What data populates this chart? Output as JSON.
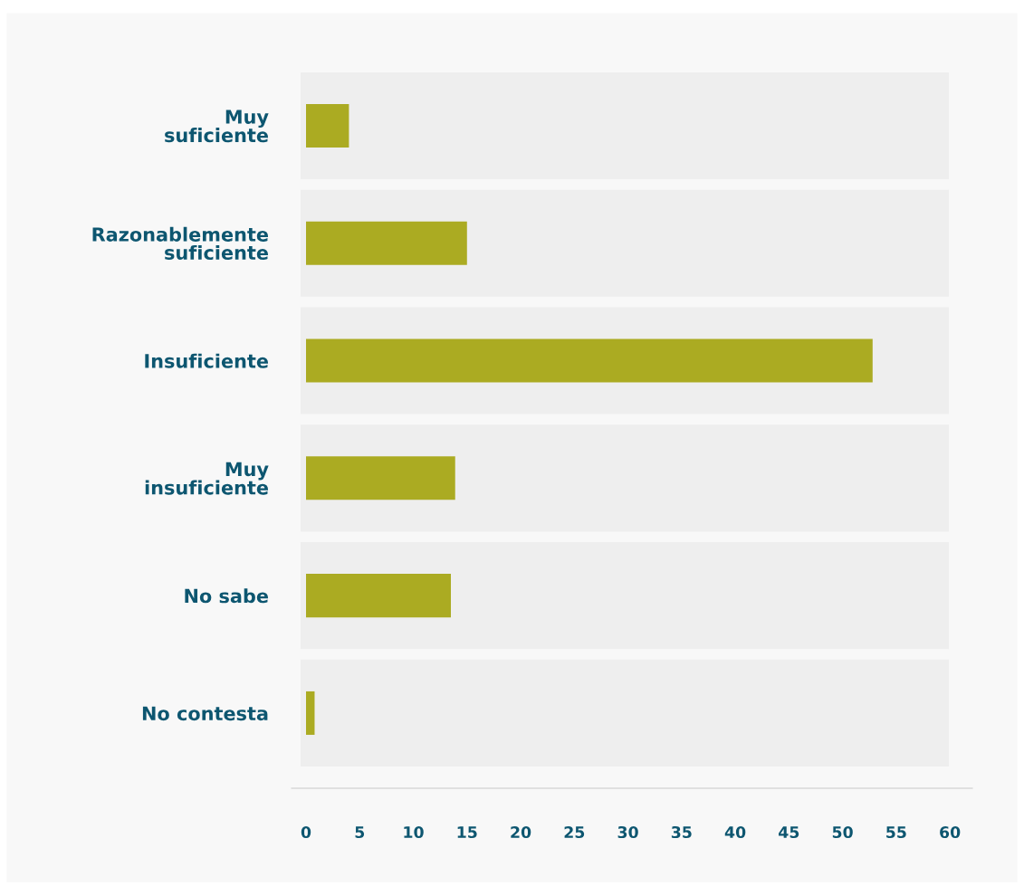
{
  "chart_data": {
    "type": "bar",
    "orientation": "horizontal",
    "categories": [
      "Muy\nsuficiente",
      "Razonablemente\nsuficiente",
      "Insuficiente",
      "Muy\ninsuficiente",
      "No sabe",
      "No contesta"
    ],
    "values": [
      4,
      15,
      52.8,
      13.9,
      13.5,
      0.8
    ],
    "color": "#abab22",
    "xlim": [
      -1.35,
      62.1
    ],
    "xticks": [
      0,
      5,
      10,
      15,
      20,
      25,
      30,
      35,
      40,
      45,
      50,
      55,
      60
    ],
    "grid": false,
    "legend": false
  }
}
